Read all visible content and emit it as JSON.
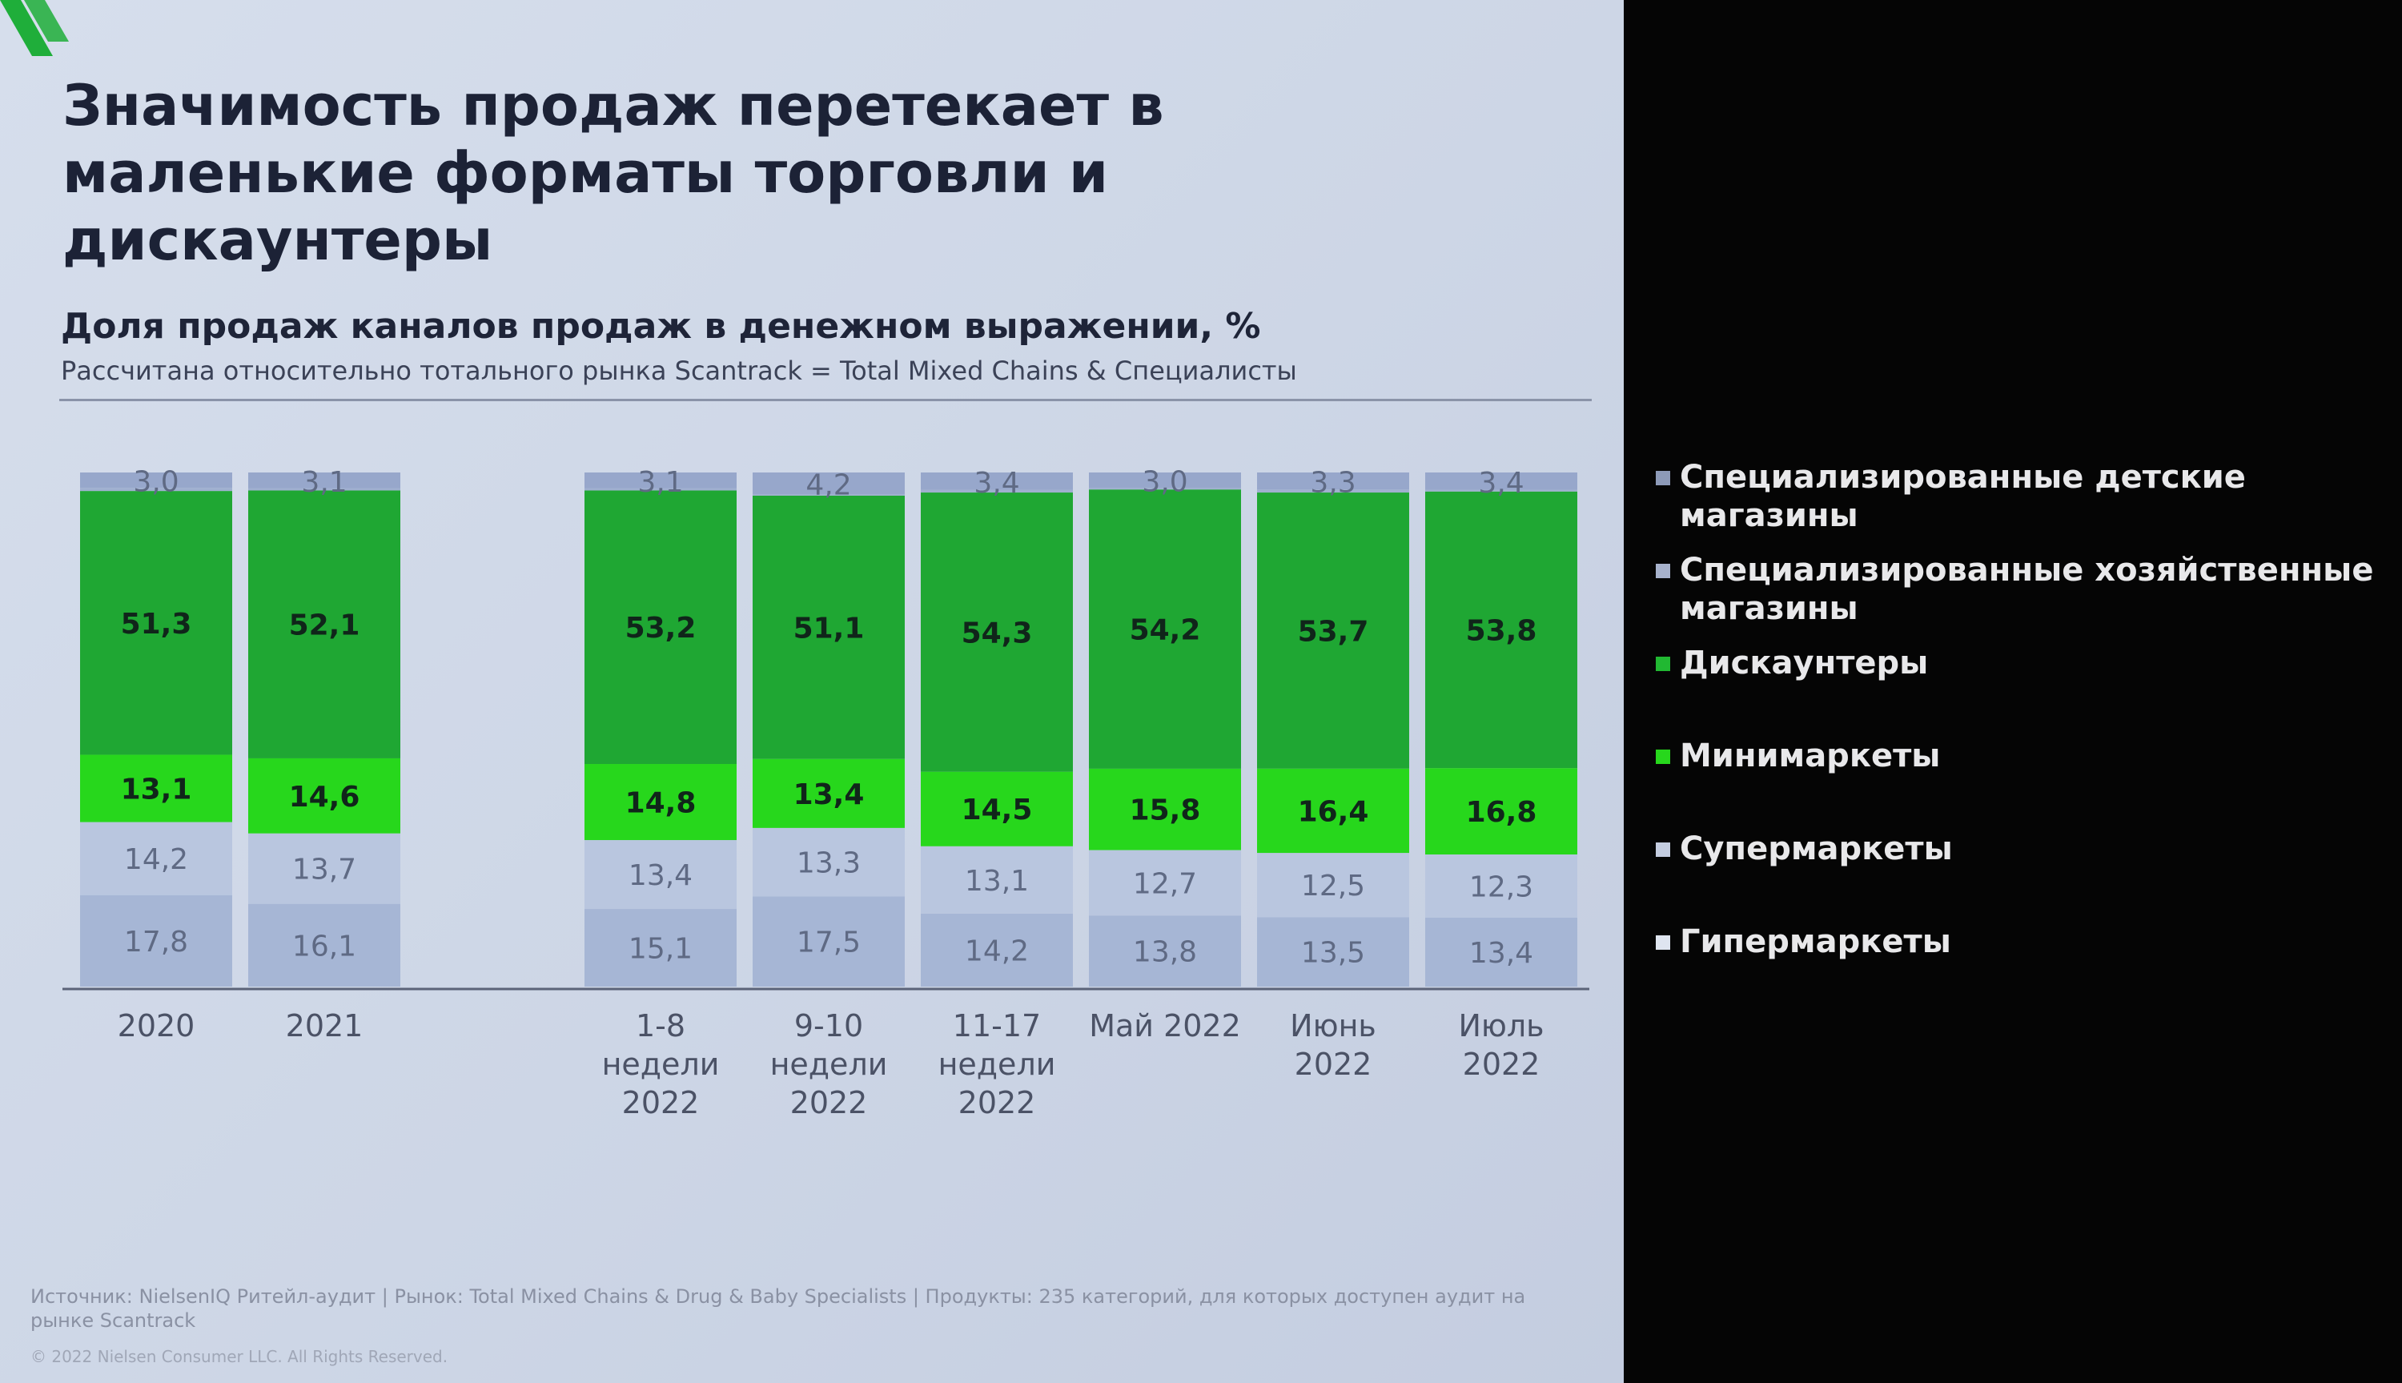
{
  "title": "Значимость продаж перетекает в\nмаленькие форматы торговли и\nдискаунтеры",
  "chart_data": {
    "type": "bar",
    "stacked": true,
    "title": "Доля продаж каналов продаж в денежном выражении, %",
    "subtitle": "Рассчитана относительно тотального рынка Scantrack = Total Mixed Chains & Специалисты",
    "categories": [
      "2020",
      "2021",
      "1-8 недели 2022",
      "9-10 недели 2022",
      "11-17 недели 2022",
      "Май 2022",
      "Июнь 2022",
      "Июль 2022"
    ],
    "series": [
      {
        "name": "Гипермаркеты",
        "color": "#a6b6d5",
        "values": [
          17.8,
          16.1,
          15.1,
          17.5,
          14.2,
          13.8,
          13.5,
          13.4
        ],
        "labels": [
          "17,8",
          "16,1",
          "15,1",
          "17,5",
          "14,2",
          "13,8",
          "13,5",
          "13,4"
        ]
      },
      {
        "name": "Супермаркеты",
        "color": "#b9c6df",
        "values": [
          14.2,
          13.7,
          13.4,
          13.3,
          13.1,
          12.7,
          12.5,
          12.3
        ],
        "labels": [
          "14,2",
          "13,7",
          "13,4",
          "13,3",
          "13,1",
          "12,7",
          "12,5",
          "12,3"
        ]
      },
      {
        "name": "Минимаркеты",
        "color": "#27d71c",
        "values": [
          13.1,
          14.6,
          14.8,
          13.4,
          14.5,
          15.8,
          16.4,
          16.8
        ],
        "labels": [
          "13,1",
          "14,6",
          "14,8",
          "13,4",
          "14,5",
          "15,8",
          "16,4",
          "16,8"
        ]
      },
      {
        "name": "Дискаунтеры",
        "color": "#1fa733",
        "values": [
          51.3,
          52.1,
          53.2,
          51.1,
          54.3,
          54.2,
          53.7,
          53.8
        ],
        "labels": [
          "51,3",
          "52,1",
          "53,2",
          "51,1",
          "54,3",
          "54,2",
          "53,7",
          "53,8"
        ]
      },
      {
        "name": "Специализированные хозяйственные магазины",
        "color": "#9fb0cf",
        "values": [
          0.6,
          0.4,
          0.4,
          0.3,
          0.5,
          0.3,
          0.6,
          0.3
        ],
        "labels": [
          "",
          "",
          "",
          "",
          "",
          "",
          "",
          ""
        ]
      },
      {
        "name": "Специализированные детские магазины",
        "color": "#97a7cb",
        "values": [
          3.0,
          3.1,
          3.1,
          4.2,
          3.4,
          3.0,
          3.3,
          3.4
        ],
        "labels": [
          "3,0",
          "3,1",
          "3,1",
          "4,2",
          "3,4",
          "3,0",
          "3,3",
          "3,4"
        ]
      }
    ],
    "ylim": [
      0,
      100
    ],
    "grid": false,
    "legend_position": "right"
  },
  "legend": [
    {
      "label": "Специализированные детские магазины",
      "color": "#8d9ab8"
    },
    {
      "label": "Специализированные хозяйственные\nмагазины",
      "color": "#a7b2cc"
    },
    {
      "label": "Дискаунтеры",
      "color": "#21b832"
    },
    {
      "label": "Минимаркеты",
      "color": "#27d71c"
    },
    {
      "label": "Супермаркеты",
      "color": "#c4cde0"
    },
    {
      "label": "Гипермаркеты",
      "color": "#dfe5f0"
    }
  ],
  "footer": {
    "source": "Источник: NielsenIQ Ритейл-аудит | Рынок: Total Mixed Chains & Drug & Baby Specialists | Продукты: 235 категорий, для которых доступен аудит на рынке Scantrack",
    "copyright": "© 2022 Nielsen Consumer LLC. All Rights Reserved."
  },
  "colors": {
    "brand_green": "#1fae3a",
    "text_dark": "#1c2236"
  }
}
